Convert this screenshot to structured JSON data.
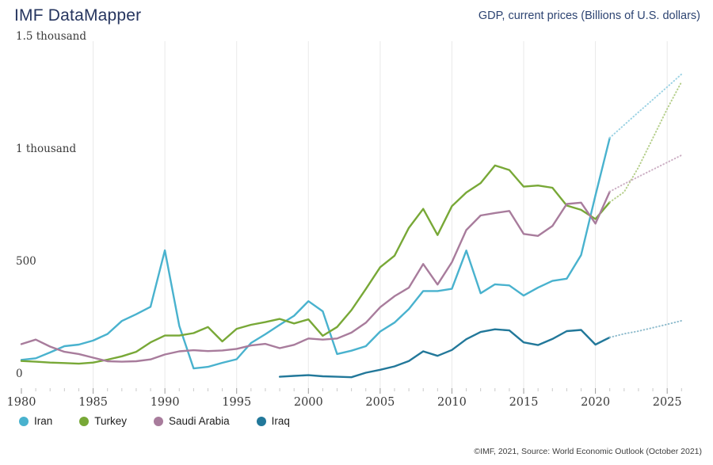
{
  "header": {
    "title": "IMF DataMapper",
    "subtitle": "GDP, current prices (Billions of U.S. dollars)"
  },
  "footer": {
    "source_note": "©IMF, 2021, Source: World Economic Outlook (October 2021)"
  },
  "colors": {
    "title_navy": "#26355f",
    "axis_text": "#3a3a3a",
    "gridline": "#e9e9e9",
    "tick_minor": "#c9c9c9",
    "tick_major": "#9a9a9a"
  },
  "legend": {
    "items": [
      {
        "label": "Iran",
        "color": "#49b2ce"
      },
      {
        "label": "Turkey",
        "color": "#78a837"
      },
      {
        "label": "Saudi Arabia",
        "color": "#a87c9c"
      },
      {
        "label": "Iraq",
        "color": "#22789a"
      }
    ]
  },
  "chart_data": {
    "type": "line",
    "title": "GDP, current prices (Billions of U.S. dollars)",
    "xlabel": "",
    "ylabel": "Billions of U.S. dollars",
    "x_start": 1980,
    "x_end": 2026,
    "ylim": [
      0,
      1500
    ],
    "grid": "vertical-only",
    "grid_years": [
      1985,
      1990,
      1995,
      2000,
      2005,
      2010,
      2015,
      2020,
      2025
    ],
    "x_tick_labels": [
      "1980",
      "1985",
      "1990",
      "1995",
      "2000",
      "2005",
      "2010",
      "2015",
      "2020",
      "2025"
    ],
    "x_tick_label_years": [
      1980,
      1985,
      1990,
      1995,
      2000,
      2005,
      2010,
      2015,
      2020,
      2025
    ],
    "y_ticks": [
      {
        "value": 0,
        "label": "0"
      },
      {
        "value": 500,
        "label": "500"
      },
      {
        "value": 1000,
        "label": "1 thousand"
      },
      {
        "value": 1500,
        "label": "1.5 thousand"
      }
    ],
    "projection_from_year": 2021,
    "projection_style": "dotted-lighter",
    "legend_position": "bottom-left",
    "series": [
      {
        "name": "Iran",
        "color": "#49b2ce",
        "projection_color": "#9dd3e4",
        "values": [
          94,
          101,
          127,
          155,
          162,
          180,
          209,
          267,
          297,
          330,
          581,
          245,
          56,
          63,
          81,
          97,
          169,
          208,
          250,
          290,
          355,
          310,
          120,
          135,
          155,
          220,
          260,
          320,
          400,
          400,
          410,
          580,
          390,
          430,
          425,
          380,
          415,
          445,
          455,
          560,
          825,
          1081,
          1138,
          1195,
          1251,
          1307,
          1364
        ]
      },
      {
        "name": "Turkey",
        "color": "#78a837",
        "projection_color": "#b6cf8c",
        "values": [
          89,
          86,
          82,
          80,
          77,
          82,
          95,
          110,
          130,
          172,
          202,
          202,
          213,
          240,
          176,
          232,
          250,
          262,
          276,
          256,
          274,
          201,
          240,
          315,
          409,
          506,
          557,
          681,
          765,
          649,
          777,
          838,
          880,
          958,
          938,
          864,
          869,
          859,
          780,
          761,
          720,
          795,
          840,
          950,
          1080,
          1210,
          1330
        ]
      },
      {
        "name": "Saudi Arabia",
        "color": "#a87c9c",
        "projection_color": "#ccafc4",
        "values": [
          164,
          184,
          153,
          130,
          120,
          104,
          88,
          86,
          88,
          96,
          118,
          132,
          137,
          133,
          136,
          143,
          158,
          165,
          146,
          161,
          189,
          184,
          189,
          215,
          259,
          328,
          377,
          415,
          520,
          429,
          528,
          671,
          736,
          747,
          756,
          654,
          645,
          689,
          787,
          793,
          700,
          842,
          876,
          908,
          940,
          972,
          1004
        ]
      },
      {
        "name": "Iraq",
        "color": "#22789a",
        "projection_color": "#8fbccd",
        "values": [
          null,
          null,
          null,
          null,
          null,
          null,
          null,
          null,
          null,
          null,
          null,
          null,
          null,
          null,
          null,
          null,
          null,
          null,
          19,
          23,
          26,
          21,
          19,
          17,
          37,
          50,
          65,
          89,
          132,
          112,
          138,
          186,
          218,
          230,
          225,
          172,
          160,
          187,
          222,
          227,
          162,
          194,
          210,
          222,
          237,
          252,
          268
        ]
      }
    ]
  }
}
